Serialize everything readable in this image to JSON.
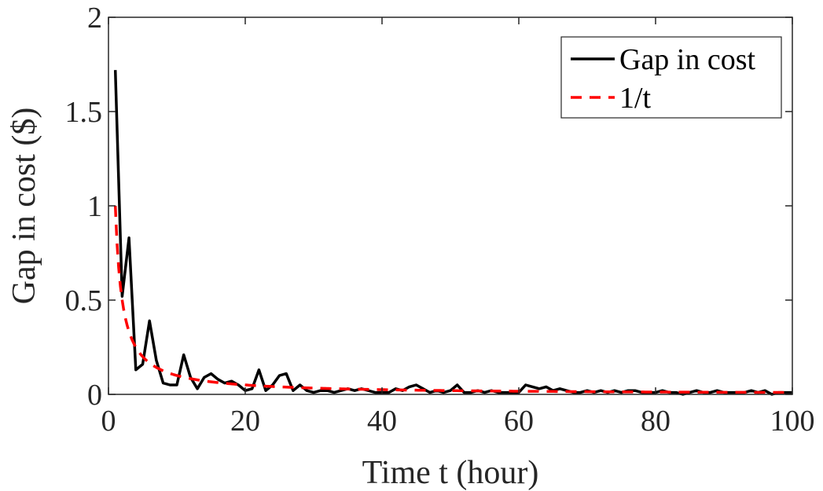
{
  "chart_data": {
    "type": "line",
    "title": "",
    "xlabel": "Time t (hour)",
    "ylabel": "Gap in cost ($)",
    "xlim": [
      0,
      100
    ],
    "ylim": [
      0,
      2
    ],
    "xticks": [
      0,
      20,
      40,
      60,
      80,
      100
    ],
    "yticks": [
      0,
      0.5,
      1,
      1.5,
      2
    ],
    "xtick_labels": [
      "0",
      "20",
      "40",
      "60",
      "80",
      "100"
    ],
    "ytick_labels": [
      "0",
      "0.5",
      "1",
      "1.5",
      "2"
    ],
    "grid": false,
    "legend_position": "top-right",
    "series": [
      {
        "name": "Gap in cost",
        "style": "solid",
        "color": "#000000",
        "x": [
          1,
          2,
          3,
          4,
          5,
          6,
          7,
          8,
          9,
          10,
          11,
          12,
          13,
          14,
          15,
          16,
          17,
          18,
          19,
          20,
          21,
          22,
          23,
          24,
          25,
          26,
          27,
          28,
          29,
          30,
          31,
          32,
          33,
          34,
          35,
          36,
          37,
          38,
          39,
          40,
          41,
          42,
          43,
          44,
          45,
          46,
          47,
          48,
          49,
          50,
          51,
          52,
          53,
          54,
          55,
          56,
          57,
          58,
          59,
          60,
          61,
          62,
          63,
          64,
          65,
          66,
          67,
          68,
          69,
          70,
          71,
          72,
          73,
          74,
          75,
          76,
          77,
          78,
          79,
          80,
          81,
          82,
          83,
          84,
          85,
          86,
          87,
          88,
          89,
          90,
          91,
          92,
          93,
          94,
          95,
          96,
          97,
          98,
          99,
          100
        ],
        "y": [
          1.72,
          0.52,
          0.83,
          0.13,
          0.16,
          0.39,
          0.18,
          0.06,
          0.05,
          0.05,
          0.21,
          0.09,
          0.03,
          0.09,
          0.11,
          0.08,
          0.06,
          0.07,
          0.05,
          0.02,
          0.03,
          0.13,
          0.02,
          0.05,
          0.1,
          0.11,
          0.02,
          0.05,
          0.02,
          0.01,
          0.02,
          0.02,
          0.01,
          0.02,
          0.03,
          0.02,
          0.03,
          0.02,
          0.01,
          0.01,
          0.01,
          0.03,
          0.02,
          0.04,
          0.05,
          0.03,
          0.01,
          0.02,
          0.01,
          0.02,
          0.05,
          0.01,
          0.01,
          0.02,
          0.01,
          0.02,
          0.01,
          0.01,
          0.01,
          0.01,
          0.05,
          0.04,
          0.03,
          0.04,
          0.02,
          0.03,
          0.02,
          0.01,
          0.01,
          0.02,
          0.01,
          0.02,
          0.01,
          0.02,
          0.01,
          0.02,
          0.02,
          0.01,
          0.01,
          0.01,
          0.02,
          0.01,
          0.01,
          0.0,
          0.01,
          0.02,
          0.01,
          0.01,
          0.02,
          0.01,
          0.01,
          0.01,
          0.01,
          0.02,
          0.01,
          0.02,
          0.0,
          0.01,
          0.01,
          0.01
        ]
      },
      {
        "name": "1/t",
        "style": "dashed",
        "color": "#ff0000",
        "function": "1/t",
        "x_range": [
          1,
          100
        ]
      }
    ]
  }
}
